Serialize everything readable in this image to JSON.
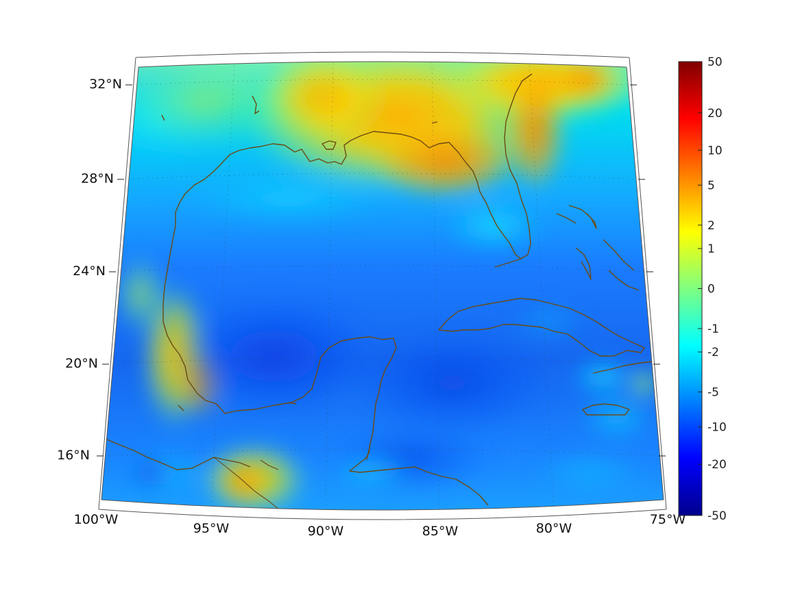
{
  "map": {
    "lon_labels": [
      "100°W",
      "95°W",
      "90°W",
      "85°W",
      "80°W",
      "75°W"
    ],
    "lat_labels": [
      "32°N",
      "28°N",
      "24°N",
      "20°N",
      "16°N"
    ],
    "region": "Gulf of Mexico and Caribbean",
    "projection": "conic",
    "coastline_color": "#6b4a14",
    "gridlines": true
  },
  "colorbar": {
    "colormap": "jet",
    "scale": "symmetric log",
    "tick_labels": [
      "50",
      "20",
      "10",
      "5",
      "2",
      "1",
      "0",
      "-1",
      "-2",
      "-5",
      "-10",
      "-20",
      "-50"
    ],
    "range": [
      -50,
      50
    ]
  }
}
